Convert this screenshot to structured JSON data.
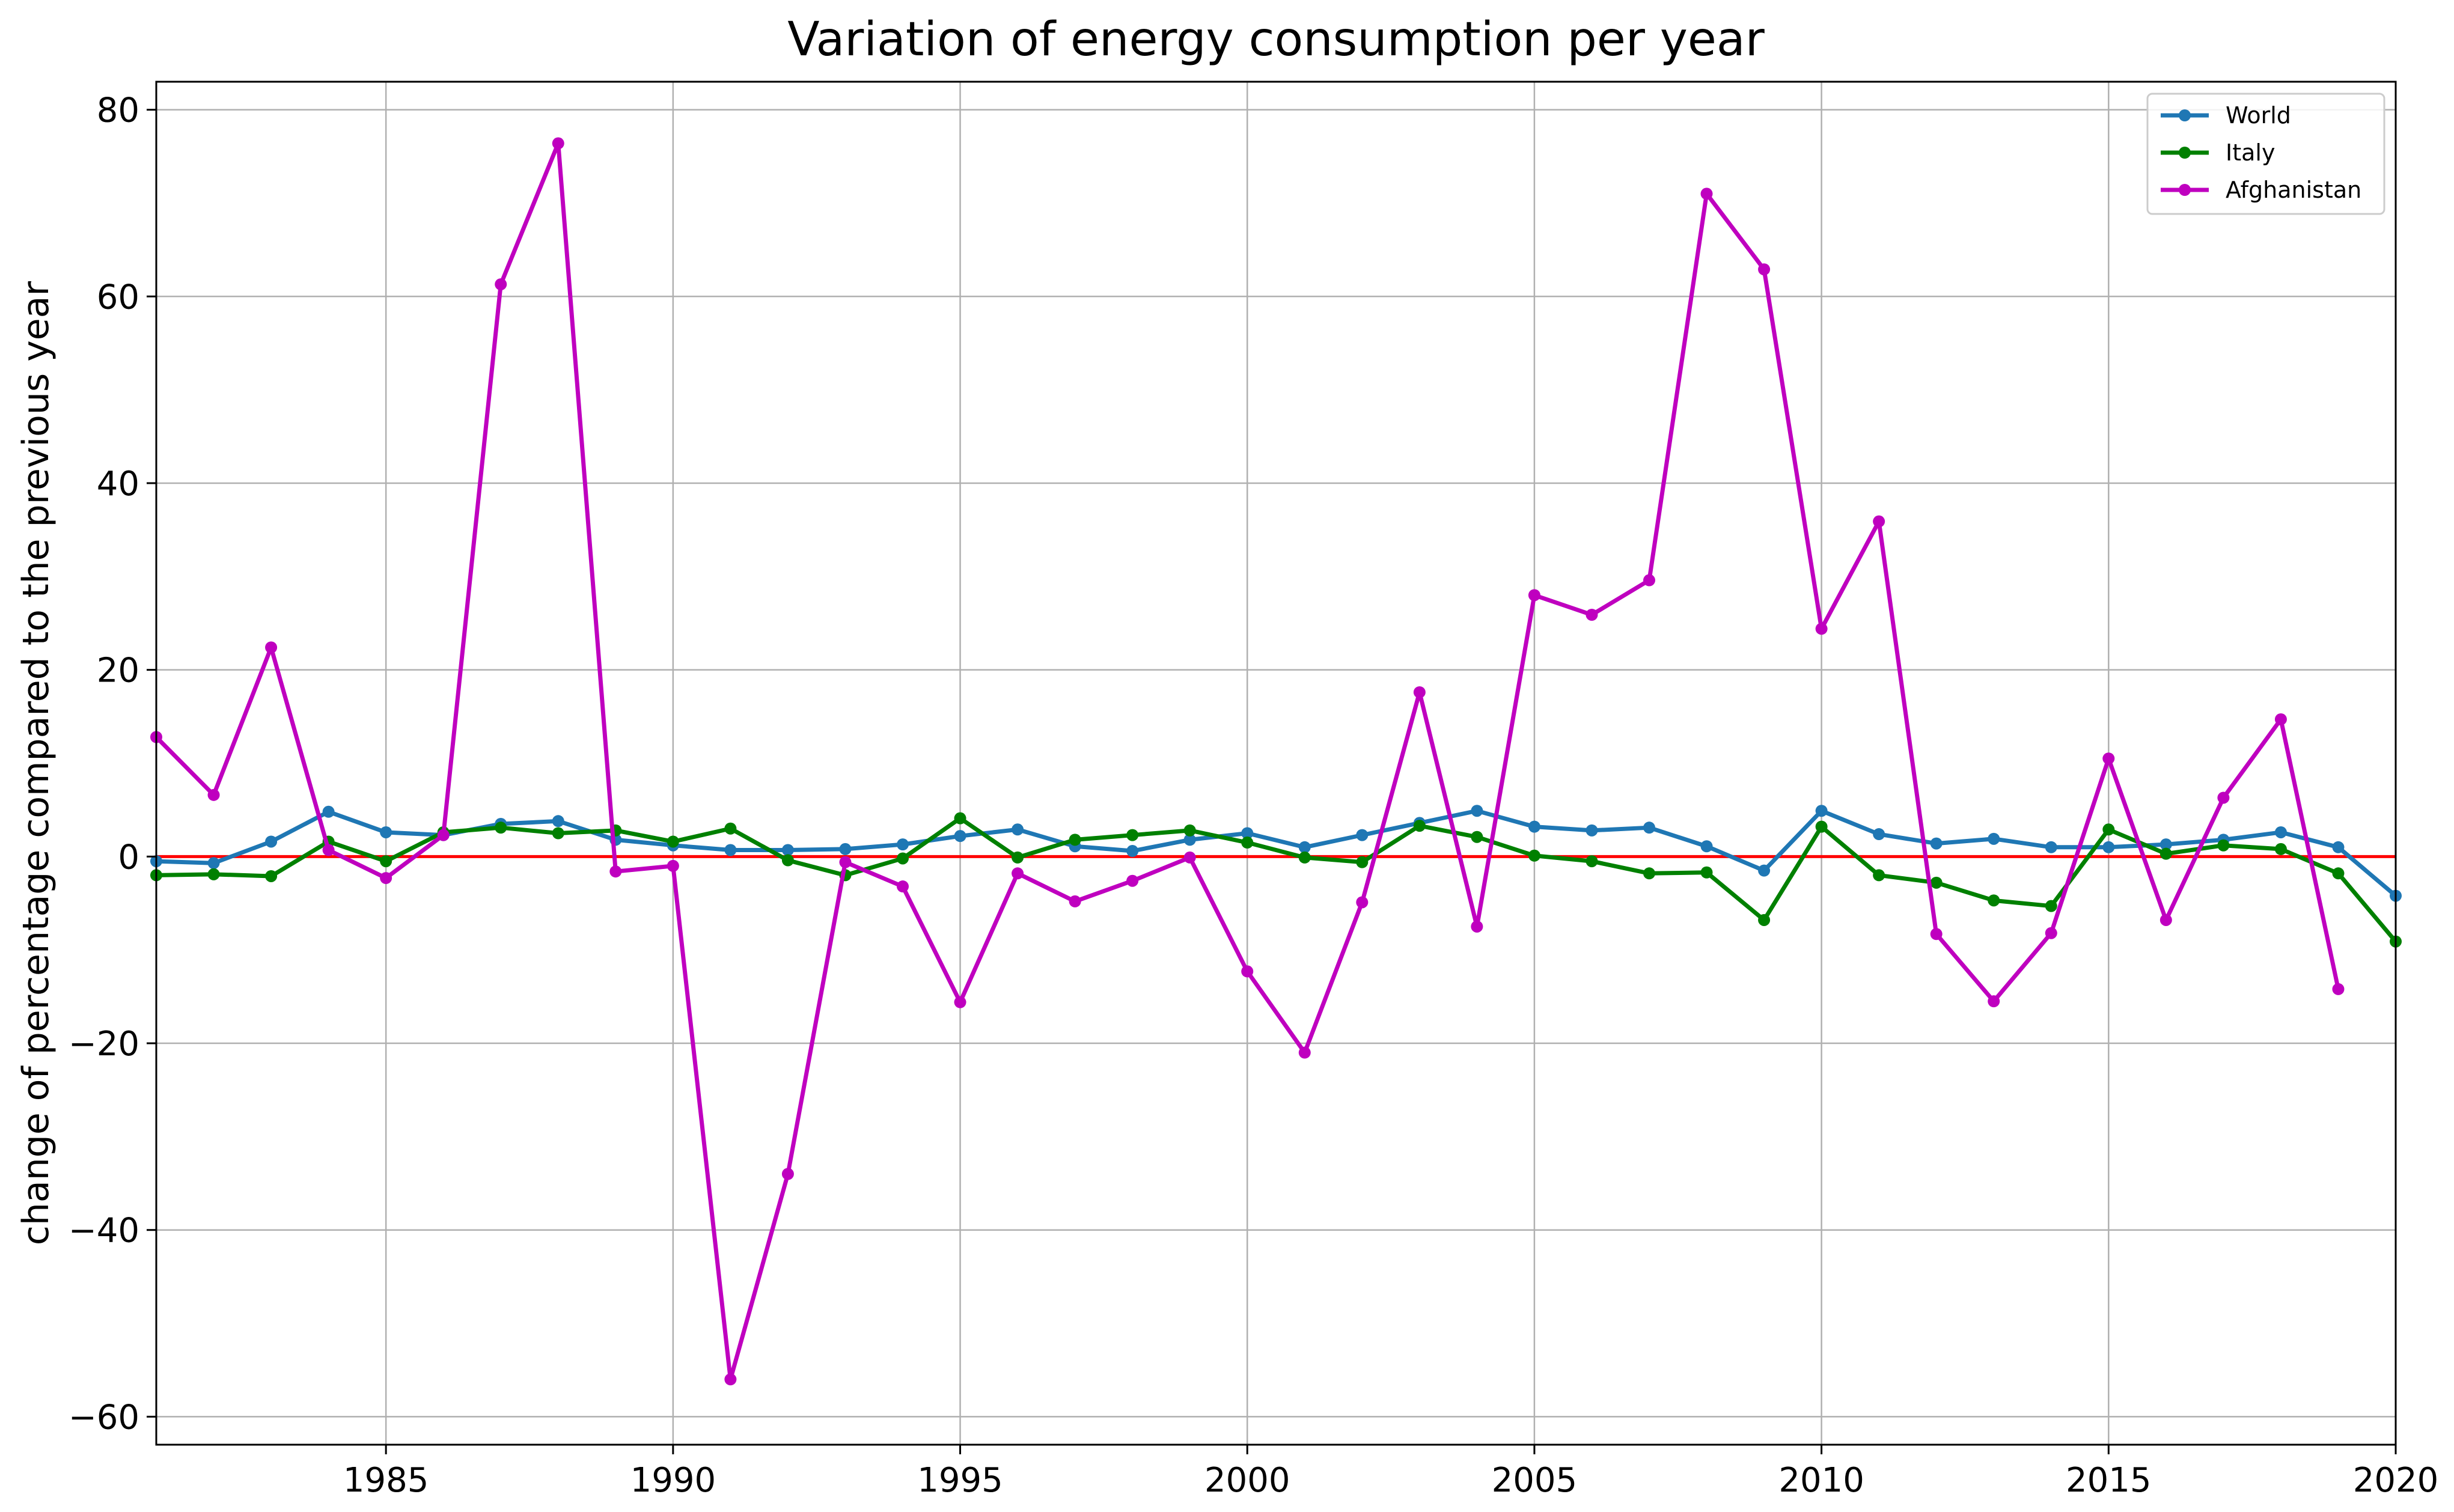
{
  "chart_data": {
    "type": "line",
    "title": "Variation of energy consumption per year",
    "xlabel": "",
    "ylabel": "change of percentage compared to the previous year",
    "xlim": [
      1981,
      2020
    ],
    "ylim": [
      -63,
      83
    ],
    "xticks": [
      1985,
      1990,
      1995,
      2000,
      2005,
      2010,
      2015,
      2020
    ],
    "yticks": [
      -60,
      -40,
      -20,
      0,
      20,
      40,
      60,
      80
    ],
    "grid": true,
    "legend_position": "top-right",
    "reference_line": {
      "y": 0,
      "color": "#ff0000"
    },
    "x": [
      1981,
      1982,
      1983,
      1984,
      1985,
      1986,
      1987,
      1988,
      1989,
      1990,
      1991,
      1992,
      1993,
      1994,
      1995,
      1996,
      1997,
      1998,
      1999,
      2000,
      2001,
      2002,
      2003,
      2004,
      2005,
      2006,
      2007,
      2008,
      2009,
      2010,
      2011,
      2012,
      2013,
      2014,
      2015,
      2016,
      2017,
      2018,
      2019,
      2020
    ],
    "series": [
      {
        "name": "World",
        "color": "#1f77b4",
        "values": [
          -0.5,
          -0.7,
          1.6,
          4.8,
          2.6,
          2.3,
          3.5,
          3.8,
          1.8,
          1.2,
          0.7,
          0.7,
          0.8,
          1.3,
          2.2,
          2.9,
          1.1,
          0.6,
          1.8,
          2.5,
          1.0,
          2.3,
          3.6,
          4.9,
          3.2,
          2.8,
          3.1,
          1.1,
          -1.5,
          4.9,
          2.4,
          1.4,
          1.9,
          1.0,
          1.0,
          1.3,
          1.8,
          2.6,
          1.0,
          -4.2
        ]
      },
      {
        "name": "Italy",
        "color": "#008000",
        "values": [
          -2.0,
          -1.9,
          -2.1,
          1.6,
          -0.5,
          2.6,
          3.1,
          2.5,
          2.8,
          1.6,
          3.0,
          -0.4,
          -2.0,
          -0.2,
          4.1,
          -0.1,
          1.8,
          2.3,
          2.8,
          1.5,
          -0.1,
          -0.6,
          3.3,
          2.1,
          0.1,
          -0.5,
          -1.8,
          -1.7,
          -6.8,
          3.2,
          -2.0,
          -2.8,
          -4.7,
          -5.3,
          2.9,
          0.3,
          1.2,
          0.8,
          -1.8,
          -9.1
        ]
      },
      {
        "name": "Afghanistan",
        "color": "#bf00bf",
        "values": [
          12.8,
          6.6,
          22.4,
          0.7,
          -2.3,
          2.3,
          61.3,
          76.4,
          -1.6,
          -1.0,
          -56.0,
          -34.0,
          -0.6,
          -3.2,
          -15.6,
          -1.8,
          -4.8,
          -2.6,
          -0.1,
          -12.3,
          -21.0,
          -4.9,
          17.6,
          -7.5,
          28.0,
          25.9,
          29.6,
          71.0,
          62.9,
          24.4,
          35.9,
          -8.3,
          -15.5,
          -8.2,
          10.5,
          -6.8,
          6.3,
          14.7,
          -14.2,
          null
        ]
      }
    ]
  }
}
